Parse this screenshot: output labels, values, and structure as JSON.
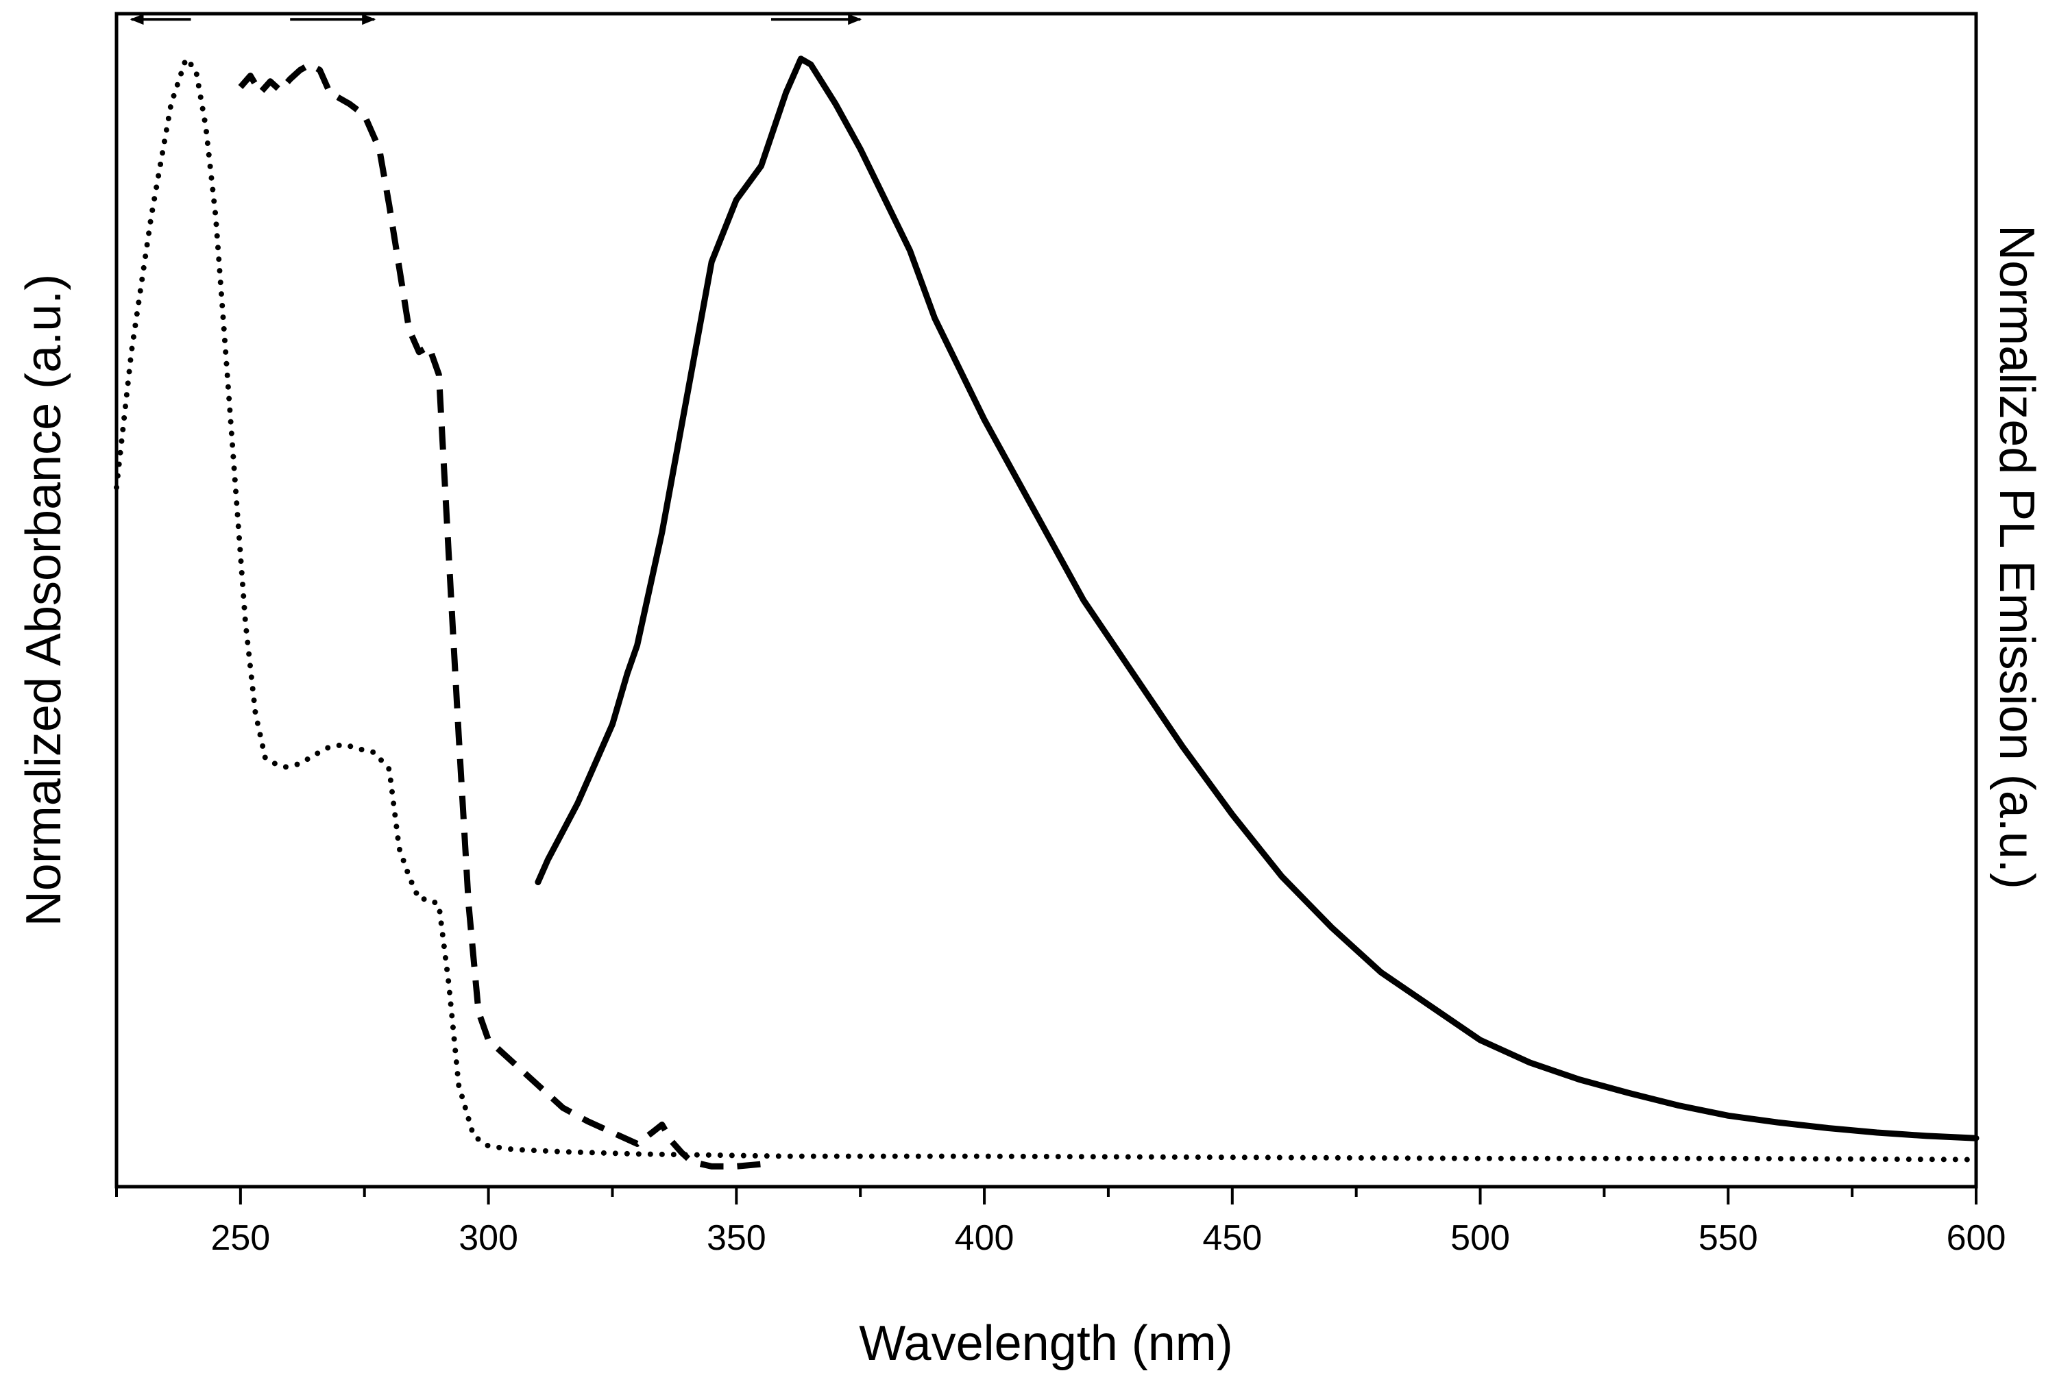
{
  "chart_data": {
    "type": "line",
    "title": "",
    "xlabel": "Wavelength (nm)",
    "ylabel_left": "Normalized Absorbance (a.u.)",
    "ylabel_right": "Normalized PL Emission (a.u.)",
    "xlim": [
      225,
      600
    ],
    "ylim": [
      0,
      1.04
    ],
    "x_ticks": [
      250,
      300,
      350,
      400,
      450,
      500,
      550,
      600
    ],
    "x_minor_ticks": [
      225,
      275,
      325,
      375,
      425,
      475,
      525,
      575
    ],
    "series": [
      {
        "name": "absorbance-dotted",
        "style": "dotted",
        "axis": "left",
        "x": [
          225,
          228,
          232,
          236,
          239,
          241,
          243,
          245,
          247,
          249,
          251,
          253,
          255,
          257,
          259,
          262,
          265,
          268,
          271,
          274,
          277,
          280,
          282,
          284,
          286,
          288,
          290,
          292,
          294,
          297,
          300,
          305,
          315,
          330,
          345,
          360,
          400,
          450,
          500,
          550,
          600
        ],
        "y": [
          0.62,
          0.74,
          0.86,
          0.96,
          1.0,
          0.99,
          0.94,
          0.86,
          0.74,
          0.62,
          0.5,
          0.42,
          0.38,
          0.375,
          0.372,
          0.375,
          0.383,
          0.39,
          0.392,
          0.388,
          0.385,
          0.37,
          0.3,
          0.275,
          0.255,
          0.255,
          0.25,
          0.18,
          0.09,
          0.045,
          0.036,
          0.033,
          0.031,
          0.029,
          0.028,
          0.027,
          0.027,
          0.026,
          0.025,
          0.025,
          0.024
        ]
      },
      {
        "name": "absorbance-dashed",
        "style": "dashed",
        "axis": "left",
        "x": [
          250,
          252,
          254,
          256,
          258,
          260,
          262,
          264,
          266,
          268,
          270,
          272,
          275,
          278,
          280,
          282,
          284,
          286,
          288,
          290,
          292,
          294,
          296,
          298,
          300,
          305,
          310,
          315,
          320,
          325,
          330,
          333,
          335,
          337,
          339,
          341,
          345,
          350,
          355
        ],
        "y": [
          0.975,
          0.985,
          0.97,
          0.98,
          0.972,
          0.982,
          0.99,
          0.995,
          0.99,
          0.97,
          0.965,
          0.96,
          0.95,
          0.92,
          0.87,
          0.815,
          0.76,
          0.74,
          0.745,
          0.72,
          0.56,
          0.4,
          0.25,
          0.155,
          0.13,
          0.11,
          0.09,
          0.07,
          0.058,
          0.048,
          0.038,
          0.048,
          0.055,
          0.04,
          0.03,
          0.022,
          0.018,
          0.018,
          0.02
        ]
      },
      {
        "name": "pl-emission-solid",
        "style": "solid",
        "axis": "right",
        "x": [
          310,
          312,
          315,
          318,
          320,
          325,
          328,
          330,
          335,
          340,
          345,
          350,
          355,
          360,
          363,
          365,
          370,
          375,
          380,
          385,
          390,
          400,
          410,
          420,
          430,
          440,
          450,
          460,
          470,
          480,
          490,
          500,
          510,
          520,
          530,
          540,
          550,
          560,
          570,
          580,
          590,
          600
        ],
        "y": [
          0.27,
          0.29,
          0.315,
          0.34,
          0.36,
          0.41,
          0.455,
          0.48,
          0.58,
          0.7,
          0.82,
          0.875,
          0.905,
          0.97,
          1.0,
          0.995,
          0.96,
          0.92,
          0.875,
          0.83,
          0.77,
          0.68,
          0.6,
          0.52,
          0.455,
          0.39,
          0.33,
          0.275,
          0.23,
          0.19,
          0.16,
          0.13,
          0.11,
          0.095,
          0.083,
          0.072,
          0.063,
          0.057,
          0.052,
          0.048,
          0.045,
          0.043
        ]
      }
    ],
    "direction_arrows": [
      {
        "name": "left-arrow-dotted",
        "x_from": 240,
        "x_to": 228,
        "y": 1.035
      },
      {
        "name": "right-arrow-dashed",
        "x_from": 260,
        "x_to": 277,
        "y": 1.035
      },
      {
        "name": "right-arrow-solid",
        "x_from": 357,
        "x_to": 375,
        "y": 1.035
      }
    ]
  }
}
